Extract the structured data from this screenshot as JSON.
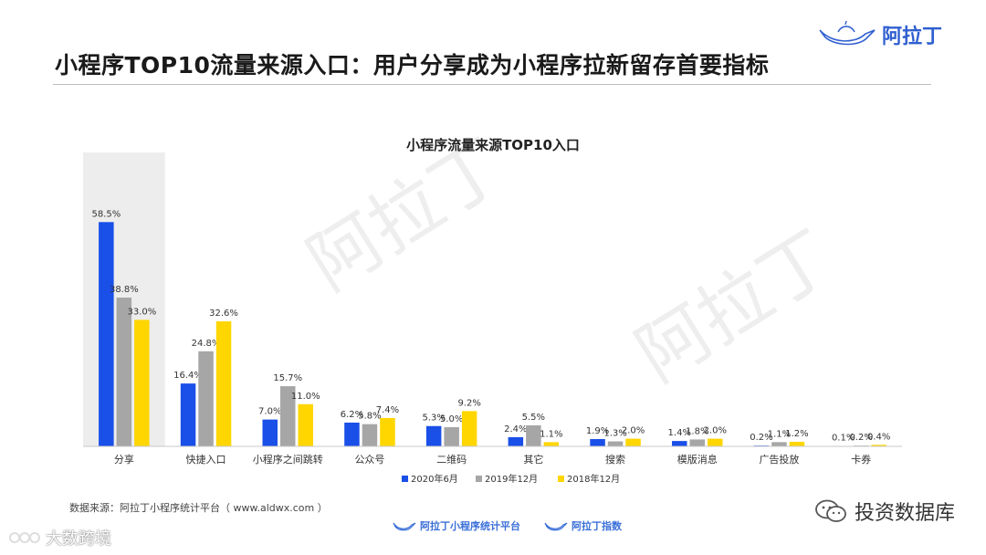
{
  "page": {
    "title": "小程序TOP10流量来源入口：用户分享成为小程序拉新留存首要指标",
    "logo_text": "阿拉丁",
    "source": "数据来源：阿拉丁小程序统计平台（ www.aldwx.com ）",
    "footer_logo_1": "阿拉丁小程序统计平台",
    "footer_logo_2": "阿拉丁指数",
    "wechat_account": "投资数据库",
    "corner_mark": "大数跨境",
    "watermark": "阿拉丁"
  },
  "chart_data": {
    "type": "bar",
    "title": "小程序流量来源TOP10入口",
    "categories": [
      "分享",
      "快捷入口",
      "小程序之间跳转",
      "公众号",
      "二维码",
      "其它",
      "搜索",
      "模版消息",
      "广告投放",
      "卡券"
    ],
    "series": [
      {
        "name": "2020年6月",
        "color": "#1a4fe8",
        "values": [
          58.5,
          16.4,
          7.0,
          6.2,
          5.3,
          2.4,
          1.9,
          1.4,
          0.2,
          0.1
        ]
      },
      {
        "name": "2019年12月",
        "color": "#a6a6a6",
        "values": [
          38.8,
          24.8,
          15.7,
          5.8,
          5.0,
          5.5,
          1.3,
          1.8,
          1.1,
          0.2
        ]
      },
      {
        "name": "2018年12月",
        "color": "#ffd600",
        "values": [
          33.0,
          32.6,
          11.0,
          7.4,
          9.2,
          1.1,
          2.0,
          2.0,
          1.2,
          0.4
        ]
      }
    ],
    "value_suffix": "%",
    "ylim": [
      0,
      60
    ],
    "legend_position": "bottom",
    "highlight_category": "分享",
    "highlight_color": "#ededed"
  }
}
